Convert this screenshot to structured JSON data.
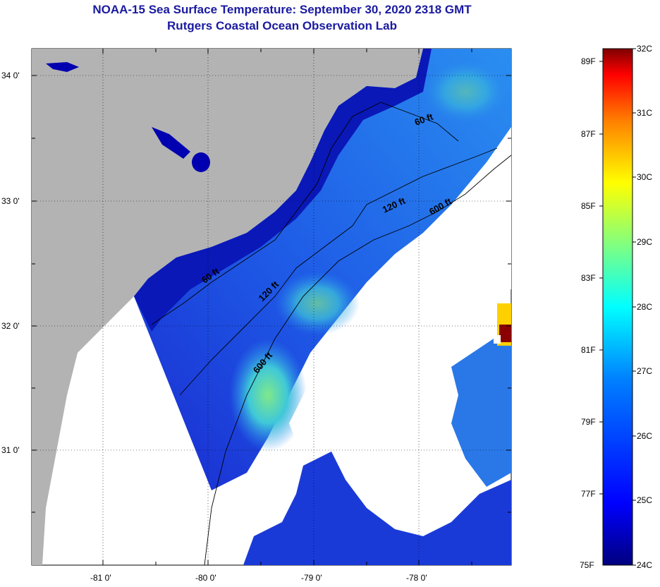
{
  "header": {
    "title": "NOAA-15 Sea Surface Temperature:  September 30, 2020 2318 GMT",
    "subtitle": "Rutgers Coastal Ocean Observation Lab"
  },
  "axes": {
    "lat_labels": [
      "34 0'",
      "33 0'",
      "32 0'",
      "31 0'"
    ],
    "lon_labels": [
      "-81 0'",
      "-80 0'",
      "-79 0'",
      "-78 0'"
    ]
  },
  "contours": {
    "labels": [
      "60 ft",
      "120 ft",
      "600 ft",
      "60 ft",
      "120 ft",
      "600 ft"
    ]
  },
  "colorbar": {
    "f_labels": [
      "89F",
      "87F",
      "85F",
      "83F",
      "81F",
      "79F",
      "77F",
      "75F"
    ],
    "c_labels": [
      "32C",
      "31C",
      "30C",
      "29C",
      "28C",
      "27C",
      "26C",
      "25C",
      "24C"
    ],
    "colors": [
      "#00007f",
      "#0000ff",
      "#0080ff",
      "#00ffff",
      "#80ff80",
      "#ffff00",
      "#ff8000",
      "#ff0000",
      "#7f0000"
    ]
  },
  "map_colors": {
    "land": "#b3b3b3",
    "coastal_water": "#0a18b8",
    "shelf_water": "#1d4fe0",
    "warm_water": "#3aa3ee",
    "warmest": "#6fe0a0",
    "cloud": "#ffffff",
    "lake": "#0000b0"
  }
}
